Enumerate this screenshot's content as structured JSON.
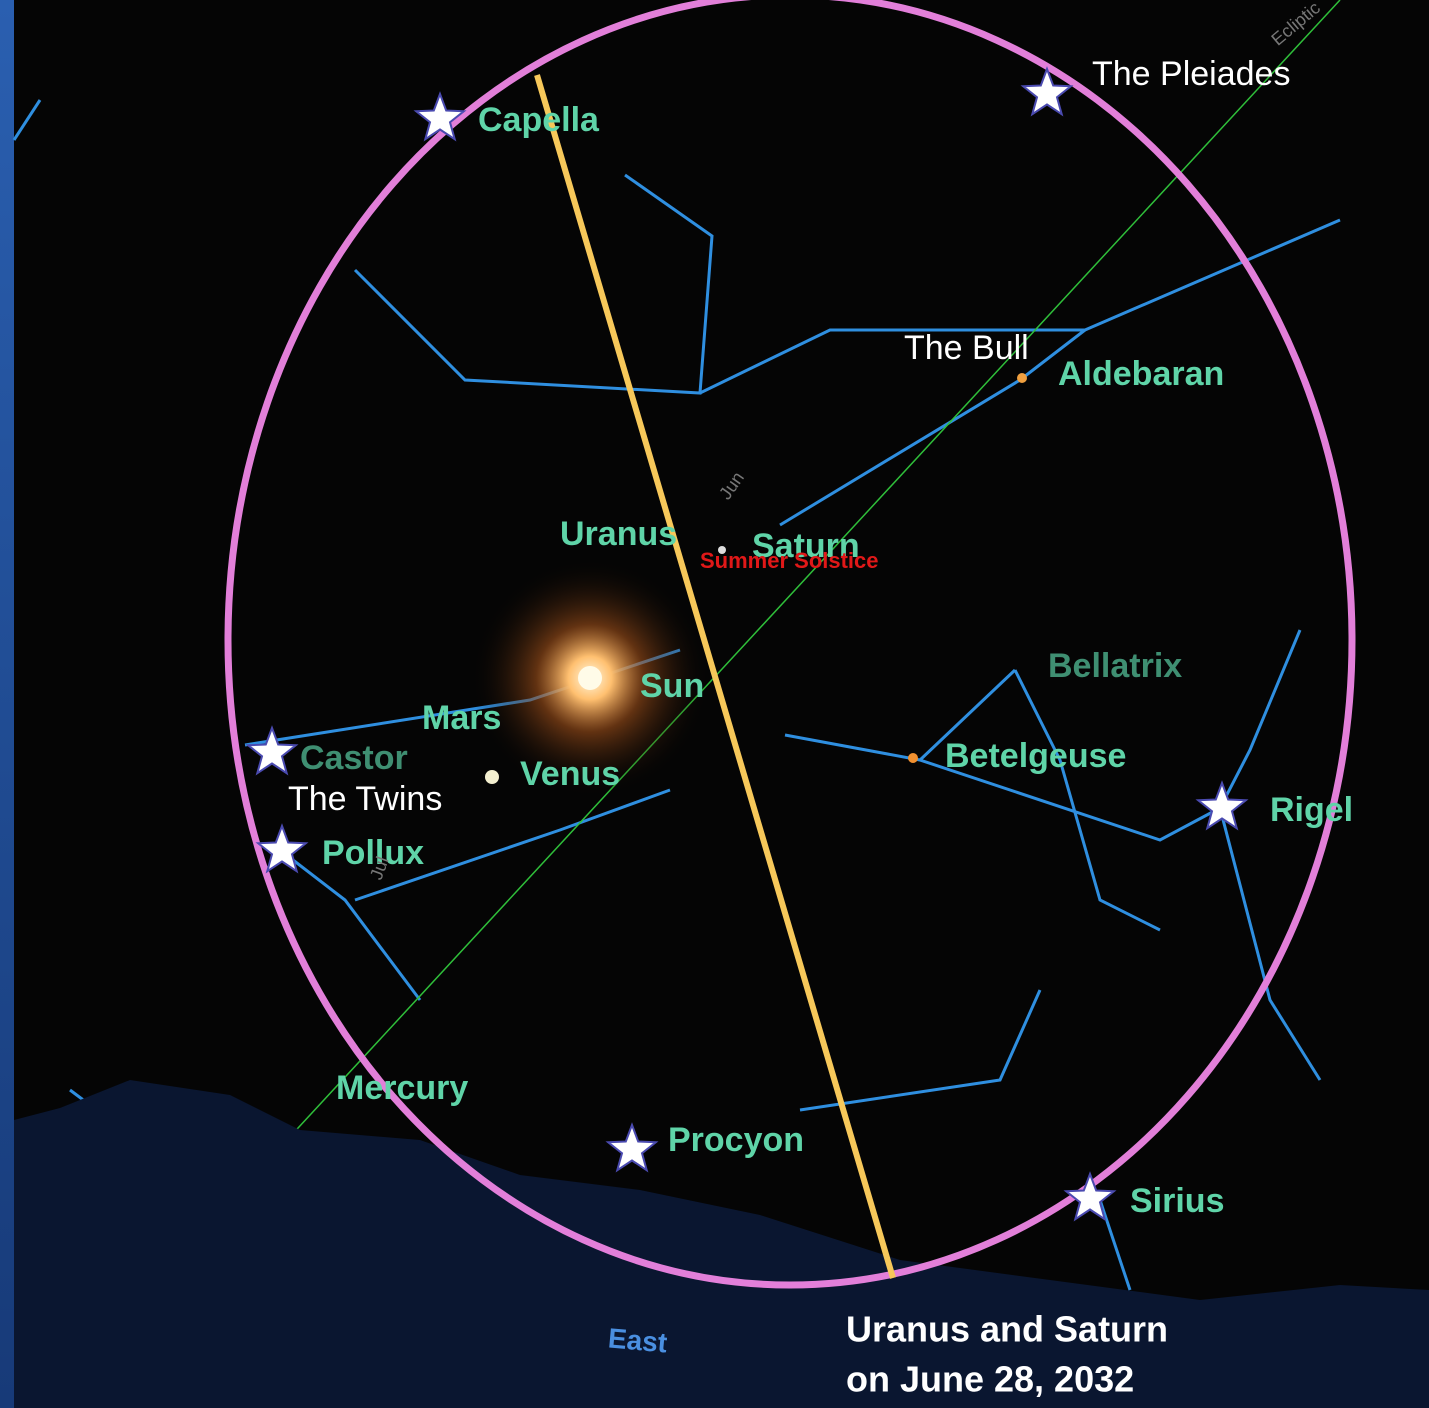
{
  "sky_labels": [
    "Capella",
    "Aldebaran",
    "Uranus",
    "Saturn",
    "Summer Solstice",
    "Bellatrix",
    "Sun",
    "Mars",
    "Betelgeuse",
    "Castor",
    "Venus",
    "Rigel",
    "Pollux",
    "Mercury",
    "Procyon",
    "Sirius",
    "Ecliptic",
    "Jun",
    "Jul"
  ],
  "annotations": [
    "The Pleiades",
    "The Bull",
    "The Twins"
  ],
  "direction": "East",
  "caption": [
    "Uranus and Saturn",
    "on June 28, 2032"
  ]
}
